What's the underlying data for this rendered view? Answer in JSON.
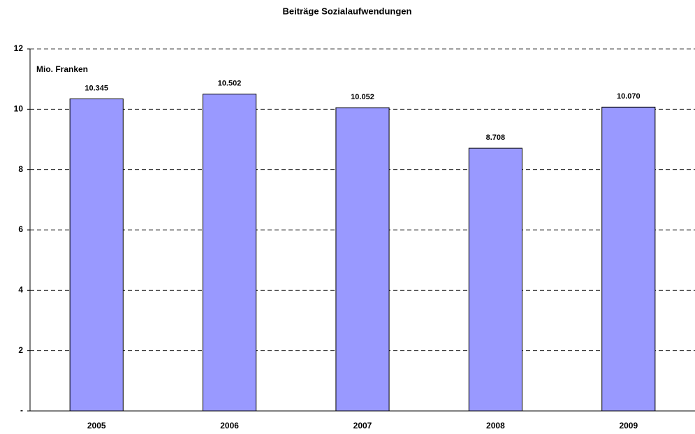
{
  "chart_data": {
    "type": "bar",
    "title": "Beiträge Sozialaufwendungen",
    "y_label": "Mio. Franken",
    "categories": [
      "2005",
      "2006",
      "2007",
      "2008",
      "2009"
    ],
    "values": [
      10.345,
      10.502,
      10.052,
      8.708,
      10.07
    ],
    "value_labels": [
      "10.345",
      "10.502",
      "10.052",
      "8.708",
      "10.070"
    ],
    "color": "#9999ff",
    "ylim": [
      0,
      12
    ],
    "yticks": [
      {
        "value": 0,
        "label": "-"
      },
      2,
      4,
      6,
      8,
      10,
      12
    ],
    "grid": true
  }
}
